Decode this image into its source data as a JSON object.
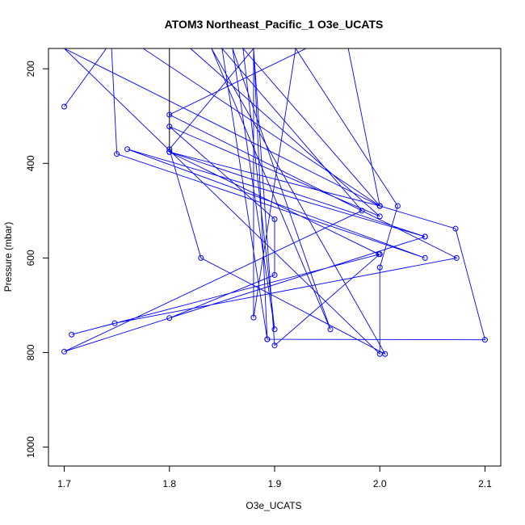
{
  "chart_data": {
    "type": "line",
    "title": "ATOM3 Northeast_Pacific_1 O3e_UCATS",
    "xlabel": "O3e_UCATS",
    "ylabel": "Pressure (mbar)",
    "xlim": [
      1.685,
      2.115
    ],
    "ylim": [
      1040,
      157
    ],
    "y_reversed": true,
    "x_ticks": [
      1.7,
      1.8,
      1.9,
      2.0,
      2.1
    ],
    "x_tick_labels": [
      "1.7",
      "1.8",
      "1.9",
      "2.0",
      "2.1"
    ],
    "y_ticks": [
      200,
      400,
      600,
      800,
      1000
    ],
    "y_tick_labels": [
      "200",
      "400",
      "600",
      "800",
      "1000"
    ],
    "grid": false,
    "legend": "none",
    "colors": {
      "series": "#0000ff",
      "special_segment": "#000000",
      "axis": "#000000"
    },
    "series": [
      {
        "points": [
          [
            1.7,
            280
          ],
          [
            1.74,
            157
          ],
          [
            1.745,
            157
          ],
          [
            1.75,
            380
          ],
          [
            2.043,
            600
          ],
          [
            1.76,
            370
          ],
          [
            2.043,
            555
          ],
          [
            1.8,
            376
          ],
          [
            1.999,
            592
          ],
          [
            1.8,
            376
          ],
          [
            2.0,
            490
          ],
          [
            1.775,
            157
          ],
          [
            1.82,
            157
          ],
          [
            2.0,
            512
          ],
          [
            1.8,
            322
          ],
          [
            1.9,
            518
          ],
          [
            1.9,
            636
          ],
          [
            1.8,
            727
          ],
          [
            2.043,
            555
          ],
          [
            1.7,
            798
          ],
          [
            1.983,
            500
          ],
          [
            1.85,
            157
          ],
          [
            1.893,
            772
          ],
          [
            1.88,
            157
          ],
          [
            1.9,
            785
          ],
          [
            2.0,
            592
          ],
          [
            1.707,
            762
          ],
          [
            1.748,
            738
          ],
          [
            2.073,
            600
          ],
          [
            1.8,
            297
          ],
          [
            1.93,
            157
          ],
          [
            1.97,
            157
          ],
          [
            2.0,
            490
          ],
          [
            1.87,
            157
          ],
          [
            1.9,
            751
          ],
          [
            1.86,
            157
          ],
          [
            1.953,
            751
          ],
          [
            1.84,
            157
          ],
          [
            2.005,
            803
          ],
          [
            1.83,
            600
          ],
          [
            1.8,
            370
          ],
          [
            1.88,
            157
          ],
          [
            1.88,
            726
          ],
          [
            1.92,
            157
          ],
          [
            2.017,
            490
          ],
          [
            2.0,
            620
          ],
          [
            2.0,
            803
          ],
          [
            1.7,
            157
          ],
          [
            2.0,
            490
          ],
          [
            2.072,
            538
          ],
          [
            2.1,
            773
          ],
          [
            1.893,
            772
          ]
        ]
      }
    ],
    "black_segment": {
      "x": 1.8,
      "y_from": 157,
      "y_to": 376
    }
  }
}
